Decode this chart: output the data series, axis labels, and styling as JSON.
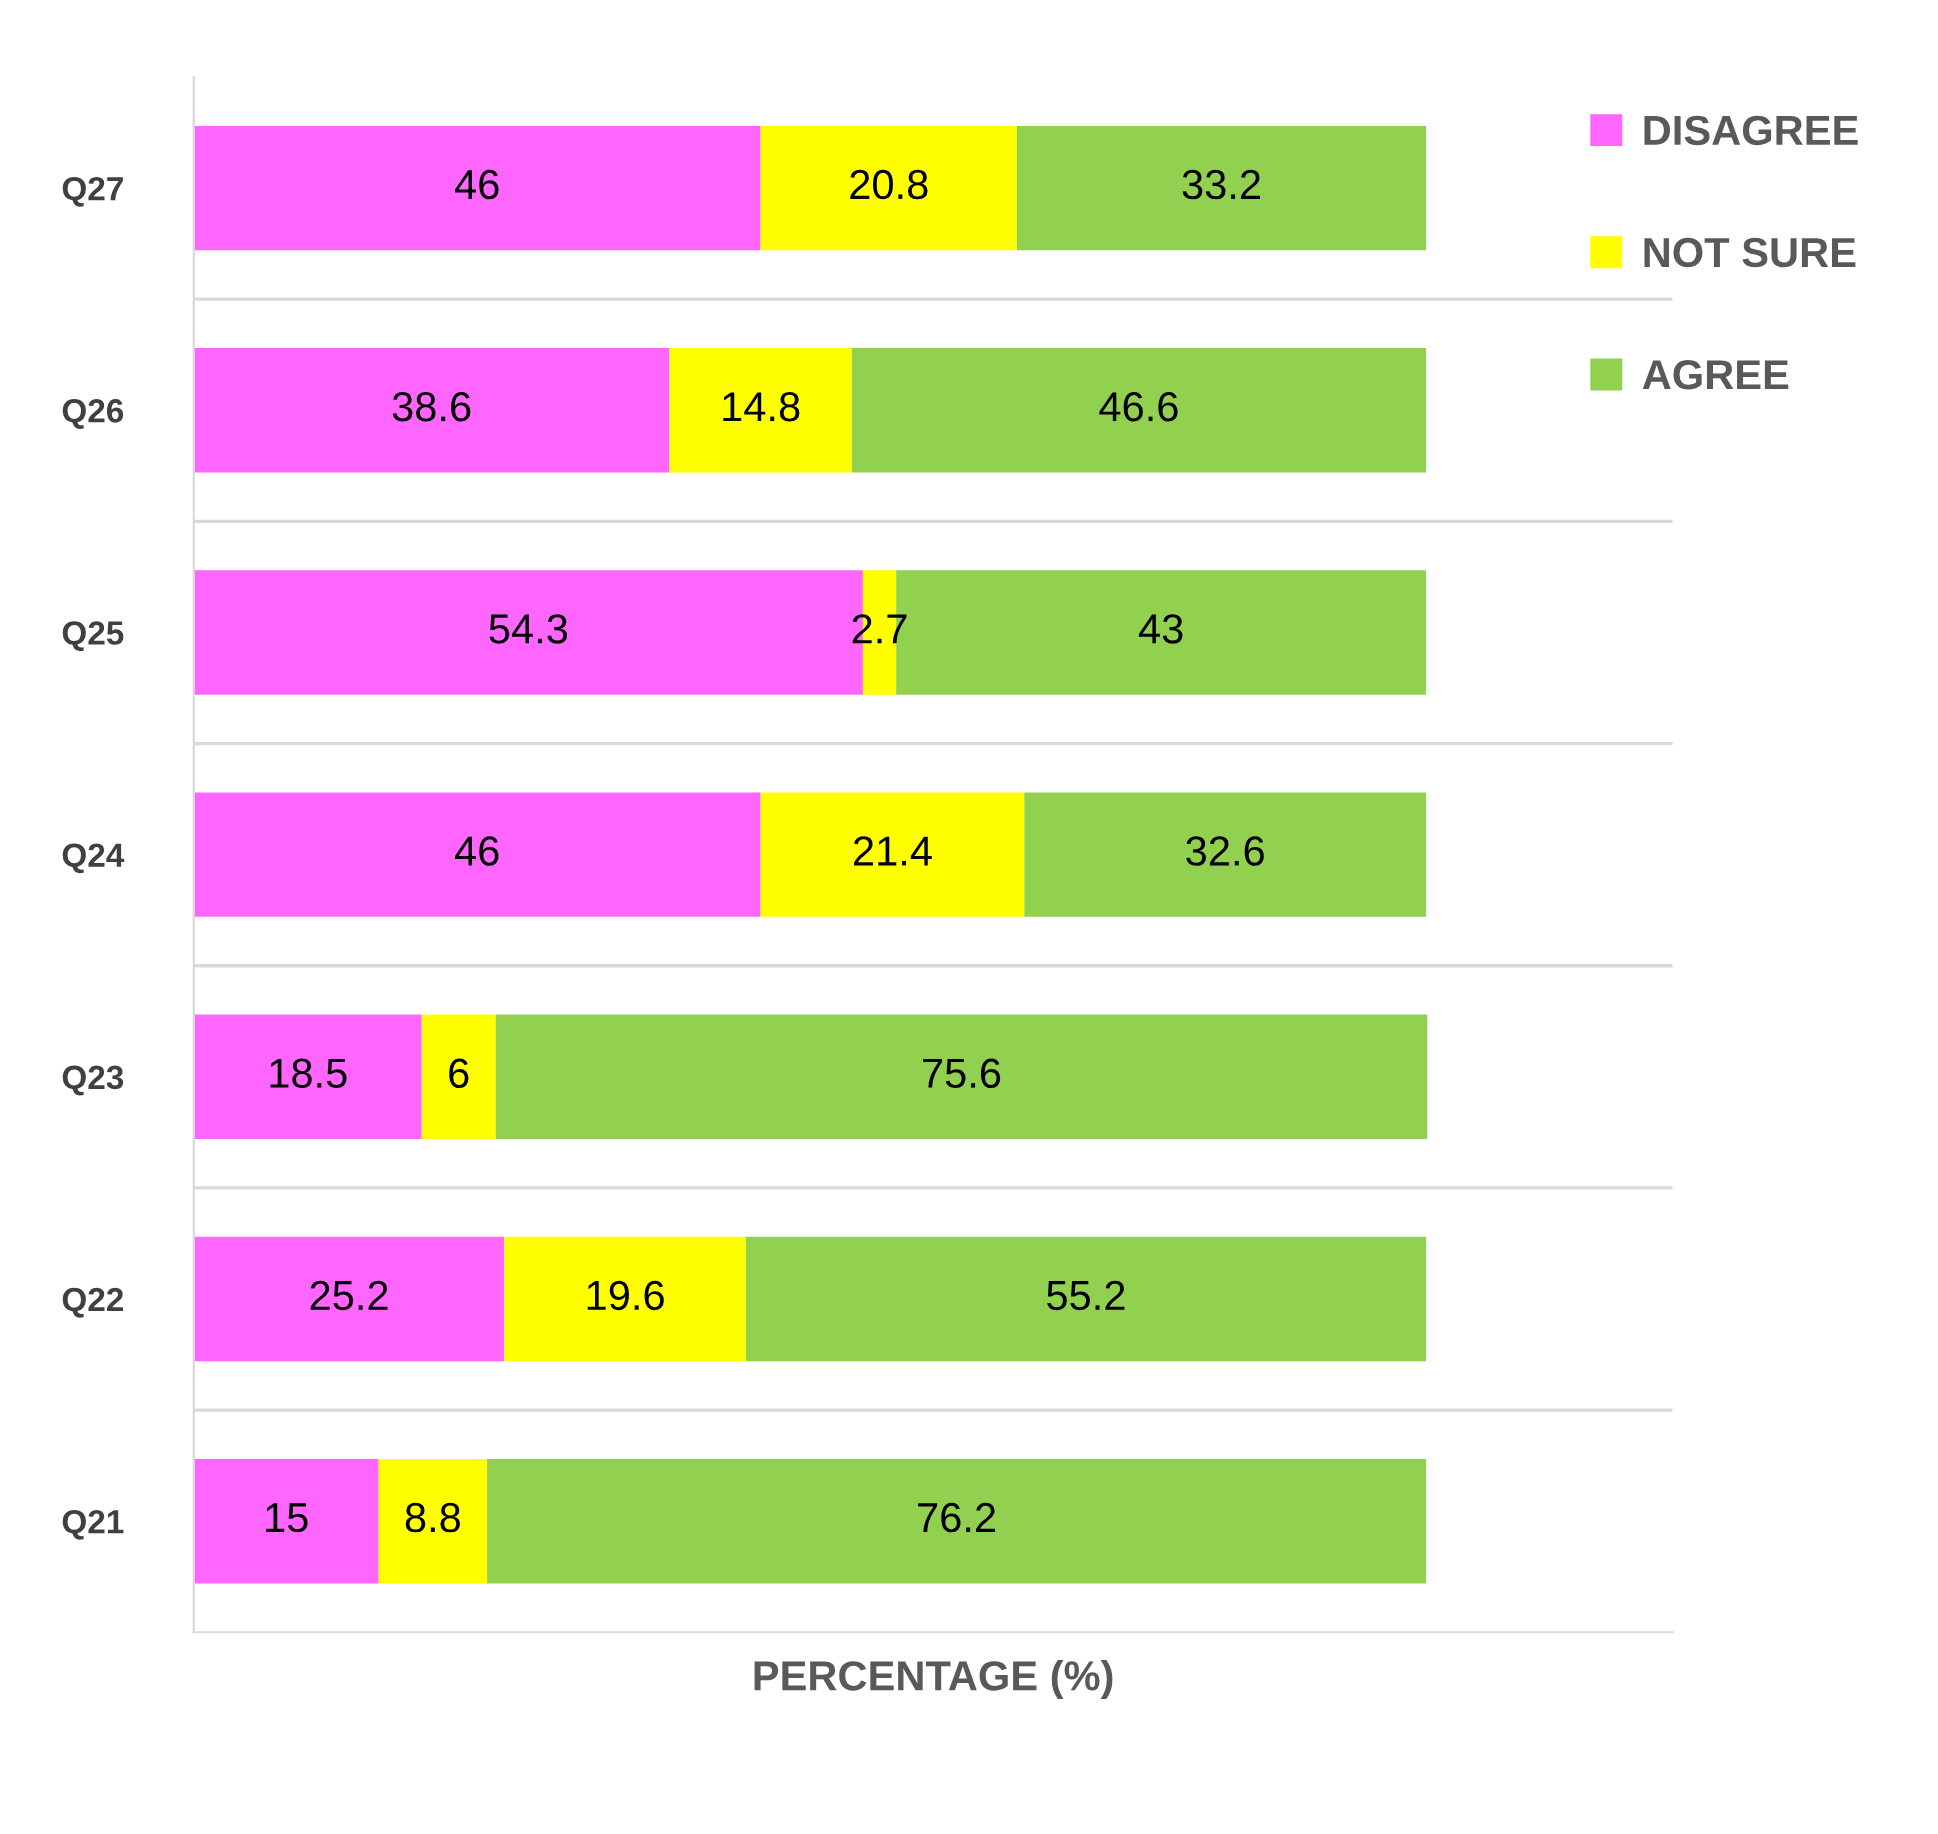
{
  "chart_data": {
    "type": "bar",
    "orientation": "horizontal",
    "stacked": true,
    "xlabel": "PERCENTAGE (%)",
    "categories": [
      "Q27",
      "Q26",
      "Q25",
      "Q24",
      "Q23",
      "Q22",
      "Q21"
    ],
    "series": [
      {
        "name": "DISAGREE",
        "color": "#ff66ff",
        "values": [
          46,
          38.6,
          54.3,
          46,
          18.5,
          25.2,
          15
        ]
      },
      {
        "name": "NOT SURE",
        "color": "#ffff00",
        "values": [
          20.8,
          14.8,
          2.7,
          21.4,
          6,
          19.6,
          8.8
        ]
      },
      {
        "name": "AGREE",
        "color": "#92d050",
        "values": [
          33.2,
          46.6,
          43,
          32.6,
          75.6,
          55.2,
          76.2
        ]
      }
    ],
    "xlim": [
      0,
      120
    ],
    "tick_labels": "y",
    "data_labels": true,
    "grid": "y",
    "legend": "top right"
  }
}
